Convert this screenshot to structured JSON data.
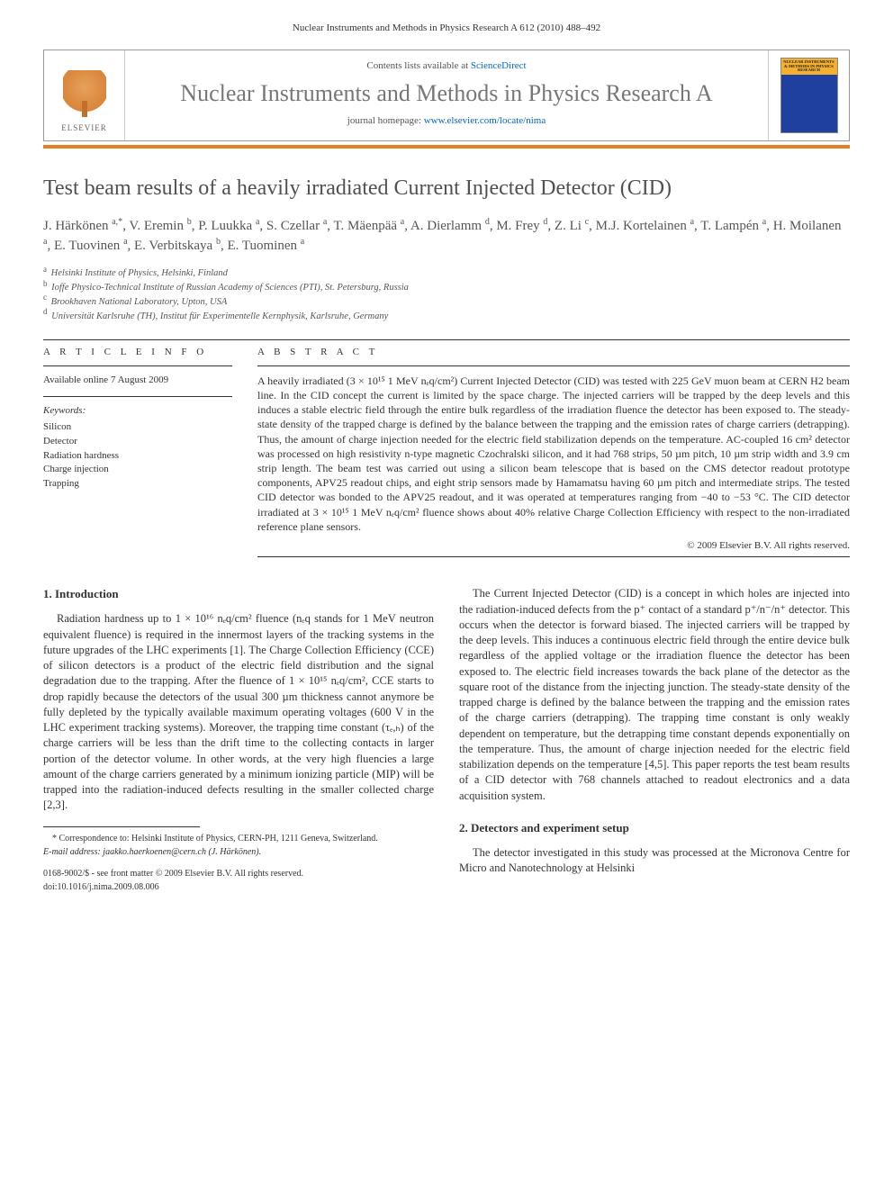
{
  "runningHead": "Nuclear Instruments and Methods in Physics Research A 612 (2010) 488–492",
  "journalBox": {
    "contentsPrefix": "Contents lists available at ",
    "contentsLink": "ScienceDirect",
    "journalTitle": "Nuclear Instruments and Methods in Physics Research A",
    "homepagePrefix": "journal homepage: ",
    "homepageUrl": "www.elsevier.com/locate/nima",
    "publisherWord": "ELSEVIER",
    "coverTopLines": "NUCLEAR INSTRUMENTS & METHODS IN PHYSICS RESEARCH"
  },
  "colors": {
    "orangeBar": "#e67e22",
    "linkColor": "#0066cc",
    "titleGrey": "#505050",
    "bodyText": "#333333"
  },
  "article": {
    "title": "Test beam results of a heavily irradiated Current Injected Detector (CID)",
    "authorsHtml": "J. Härkönen <sup>a,*</sup>, V. Eremin <sup>b</sup>, P. Luukka <sup>a</sup>, S. Czellar <sup>a</sup>, T. Mäenpää <sup>a</sup>, A. Dierlamm <sup>d</sup>, M. Frey <sup>d</sup>, Z. Li <sup>c</sup>, M.J. Kortelainen <sup>a</sup>, T. Lampén <sup>a</sup>, H. Moilanen <sup>a</sup>, E. Tuovinen <sup>a</sup>, E. Verbitskaya <sup>b</sup>, E. Tuominen <sup>a</sup>",
    "affiliations": [
      {
        "key": "a",
        "text": "Helsinki Institute of Physics, Helsinki, Finland"
      },
      {
        "key": "b",
        "text": "Ioffe Physico-Technical Institute of Russian Academy of Sciences (PTI), St. Petersburg, Russia"
      },
      {
        "key": "c",
        "text": "Brookhaven National Laboratory, Upton, USA"
      },
      {
        "key": "d",
        "text": "Universität Karlsruhe (TH), Institut für Experimentelle Kernphysik, Karlsruhe, Germany"
      }
    ]
  },
  "info": {
    "label": "A R T I C L E   I N F O",
    "available": "Available online 7 August 2009",
    "keywordsLabel": "Keywords:",
    "keywords": [
      "Silicon",
      "Detector",
      "Radiation hardness",
      "Charge injection",
      "Trapping"
    ]
  },
  "abstract": {
    "label": "A B S T R A C T",
    "text": "A heavily irradiated (3 × 10¹⁵ 1 MeV nₑq/cm²) Current Injected Detector (CID) was tested with 225 GeV muon beam at CERN H2 beam line. In the CID concept the current is limited by the space charge. The injected carriers will be trapped by the deep levels and this induces a stable electric field through the entire bulk regardless of the irradiation fluence the detector has been exposed to. The steady-state density of the trapped charge is defined by the balance between the trapping and the emission rates of charge carriers (detrapping). Thus, the amount of charge injection needed for the electric field stabilization depends on the temperature. AC-coupled 16 cm² detector was processed on high resistivity n-type magnetic Czochralski silicon, and it had 768 strips, 50 µm pitch, 10 µm strip width and 3.9 cm strip length. The beam test was carried out using a silicon beam telescope that is based on the CMS detector readout prototype components, APV25 readout chips, and eight strip sensors made by Hamamatsu having 60 µm pitch and intermediate strips. The tested CID detector was bonded to the APV25 readout, and it was operated at temperatures ranging from −40 to −53 °C. The CID detector irradiated at 3 × 10¹⁵ 1 MeV nₑq/cm² fluence shows about 40% relative Charge Collection Efficiency with respect to the non-irradiated reference plane sensors.",
    "copyright": "© 2009 Elsevier B.V. All rights reserved."
  },
  "body": {
    "sec1": {
      "heading": "1. Introduction",
      "p1": "Radiation hardness up to 1 × 10¹⁶ nₑq/cm² fluence (nₑq stands for 1 MeV neutron equivalent fluence) is required in the innermost layers of the tracking systems in the future upgrades of the LHC experiments [1]. The Charge Collection Efficiency (CCE) of silicon detectors is a product of the electric field distribution and the signal degradation due to the trapping. After the fluence of 1 × 10¹⁵ nₑq/cm², CCE starts to drop rapidly because the detectors of the usual 300 µm thickness cannot anymore be fully depleted by the typically available maximum operating voltages (600 V in the LHC experiment tracking systems). Moreover, the trapping time constant (τₑ,ₕ) of the charge carriers will be less than the drift time to the collecting contacts in larger portion of the detector volume. In other words, at the very high fluencies a large amount of the charge carriers generated by a minimum ionizing particle (MIP) will be trapped into the radiation-induced defects resulting in the smaller collected charge [2,3].",
      "p2": "The Current Injected Detector (CID) is a concept in which holes are injected into the radiation-induced defects from the p⁺ contact of a standard p⁺/n⁻/n⁺ detector. This occurs when the detector is forward biased. The injected carriers will be trapped by the deep levels. This induces a continuous electric field through the entire device bulk regardless of the applied voltage or the irradiation fluence the detector has been exposed to. The electric field increases towards the back plane of the detector as the square root of the distance from the injecting junction. The steady-state density of the trapped charge is defined by the balance between the trapping and the emission rates of the charge carriers (detrapping). The trapping time constant is only weakly dependent on temperature, but the detrapping time constant depends exponentially on the temperature. Thus, the amount of charge injection needed for the electric field stabilization depends on the temperature [4,5]. This paper reports the test beam results of a CID detector with 768 channels attached to readout electronics and a data acquisition system."
    },
    "sec2": {
      "heading": "2. Detectors and experiment setup",
      "p1": "The detector investigated in this study was processed at the Micronova Centre for Micro and Nanotechnology at Helsinki"
    }
  },
  "footnotes": {
    "corr": "* Correspondence to: Helsinki Institute of Physics, CERN-PH, 1211 Geneva, Switzerland.",
    "email": "E-mail address: jaakko.haerkoenen@cern.ch (J. Härkönen).",
    "frontMatter": "0168-9002/$ - see front matter © 2009 Elsevier B.V. All rights reserved.",
    "doi": "doi:10.1016/j.nima.2009.08.006"
  },
  "layout": {
    "pageWidth": 992,
    "pageHeight": 1323,
    "columns": 2,
    "columnGap": 28
  }
}
